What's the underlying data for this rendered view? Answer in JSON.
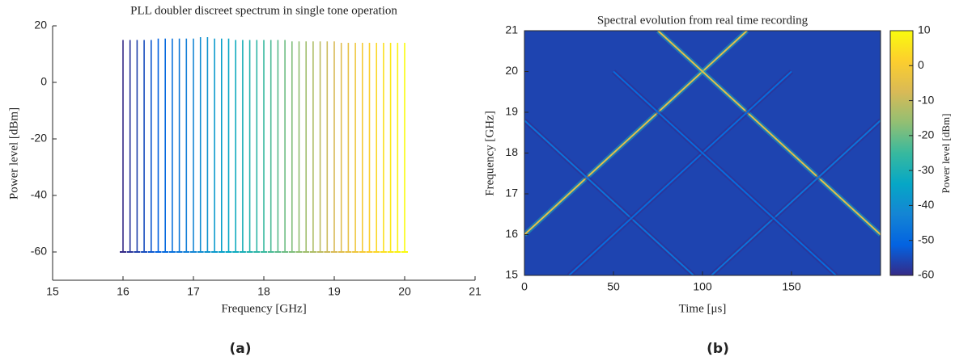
{
  "chart_data": [
    {
      "type": "stem",
      "title": "PLL doubler discreet spectrum in single tone operation",
      "xlabel": "Frequency [GHz]",
      "ylabel": "Power level [dBm]",
      "caption": "(a)",
      "x": [
        16.0,
        16.1,
        16.2,
        16.3,
        16.4,
        16.5,
        16.6,
        16.7,
        16.8,
        16.9,
        17.0,
        17.1,
        17.2,
        17.3,
        17.4,
        17.5,
        17.6,
        17.7,
        17.8,
        17.9,
        18.0,
        18.1,
        18.2,
        18.3,
        18.4,
        18.5,
        18.6,
        18.7,
        18.8,
        18.9,
        19.0,
        19.1,
        19.2,
        19.3,
        19.4,
        19.5,
        19.6,
        19.7,
        19.8,
        19.9,
        20.0
      ],
      "values": [
        15,
        15,
        15,
        15,
        15,
        15.5,
        15.5,
        15.5,
        15.5,
        15.5,
        15.5,
        16,
        16,
        15.5,
        15.5,
        15.5,
        15,
        15,
        15,
        15,
        15,
        15,
        15,
        15,
        14.5,
        14.5,
        14.5,
        14.5,
        14.5,
        14.5,
        14.5,
        14,
        14,
        14,
        14,
        14,
        14,
        14,
        14,
        14,
        14
      ],
      "baseline": -60,
      "xlim": [
        15,
        21
      ],
      "xticks": [
        15,
        16,
        17,
        18,
        19,
        20,
        21
      ],
      "ylim": [
        -70,
        20
      ],
      "yticks": [
        -60,
        -40,
        -20,
        0,
        20
      ],
      "colormap": [
        "#352a87",
        "#0363e1",
        "#1485d4",
        "#06a7c6",
        "#38b99e",
        "#92bf73",
        "#d9ba56",
        "#fcce2e",
        "#f9fb0e"
      ]
    },
    {
      "type": "heatmap",
      "title": "Spectral evolution from real time recording",
      "xlabel": "Time [μs]",
      "ylabel": "Frequency [GHz]",
      "caption": "(b)",
      "colorbar_label": "Power level [dBm]",
      "xlim": [
        0,
        200
      ],
      "xticks": [
        0,
        50,
        100,
        150
      ],
      "ylim": [
        15,
        21
      ],
      "yticks": [
        15,
        16,
        17,
        18,
        19,
        20,
        21
      ],
      "clim": [
        -60,
        10
      ],
      "cticks": [
        10,
        0,
        -10,
        -20,
        -30,
        -40,
        -50,
        -60
      ],
      "colormap": [
        "#352a87",
        "#0363e1",
        "#1485d4",
        "#06a7c6",
        "#38b99e",
        "#92bf73",
        "#d9ba56",
        "#fcce2e",
        "#f9fb0e"
      ],
      "background_level": -56,
      "series": [
        {
          "x": [
            0,
            125
          ],
          "values": [
            16,
            21
          ],
          "level": -5
        },
        {
          "x": [
            75,
            200
          ],
          "values": [
            21,
            16
          ],
          "level": -5
        },
        {
          "x": [
            0,
            95
          ],
          "values": [
            18.8,
            15
          ],
          "level": -47
        },
        {
          "x": [
            105,
            200
          ],
          "values": [
            15,
            18.8
          ],
          "level": -47
        },
        {
          "x": [
            25,
            150
          ],
          "values": [
            15,
            20
          ],
          "level": -49
        },
        {
          "x": [
            50,
            175
          ],
          "values": [
            20,
            15
          ],
          "level": -49
        }
      ]
    }
  ]
}
